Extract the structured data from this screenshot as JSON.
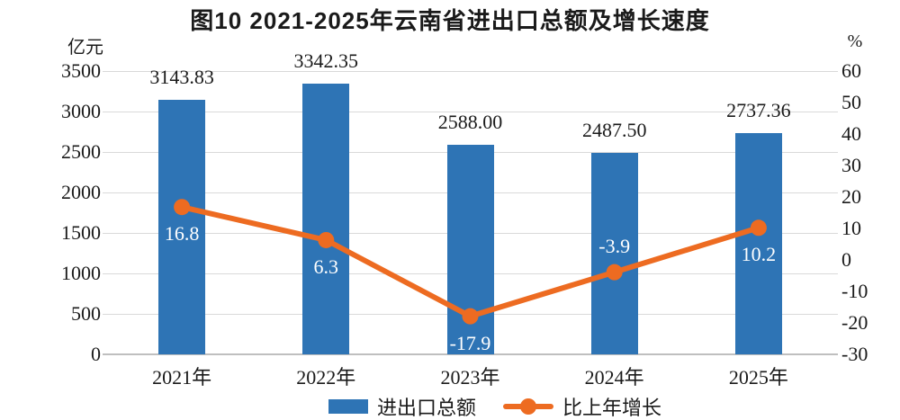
{
  "chart_data": {
    "type": "bar+line",
    "title": "图10  2021-2025年云南省进出口总额及增长速度",
    "left_axis": {
      "unit": "亿元",
      "min": 0,
      "max": 3500,
      "ticks": [
        3500,
        3000,
        2500,
        2000,
        1500,
        1000,
        500,
        0
      ]
    },
    "right_axis": {
      "unit": "%",
      "min": -30,
      "max": 60,
      "ticks": [
        60,
        50,
        40,
        30,
        20,
        10,
        0,
        -10,
        -20,
        -30
      ]
    },
    "categories": [
      "2021年",
      "2022年",
      "2023年",
      "2024年",
      "2025年"
    ],
    "series": [
      {
        "name": "进出口总额",
        "type": "bar",
        "color": "#2E74B5",
        "values": [
          3143.83,
          3342.35,
          2588.0,
          2487.5,
          2737.36
        ],
        "labels": [
          "3143.83",
          "3342.35",
          "2588.00",
          "2487.50",
          "2737.36"
        ],
        "label_color": "#1a1a1a"
      },
      {
        "name": "比上年增长",
        "type": "line",
        "color": "#ED6B21",
        "values": [
          16.8,
          6.3,
          -17.9,
          -3.9,
          10.2
        ],
        "labels": [
          "16.8",
          "6.3",
          "-17.9",
          "-3.9",
          "10.2"
        ],
        "label_color": "#ffffff",
        "label_positions": [
          "below",
          "below",
          "below",
          "above",
          "below"
        ]
      }
    ],
    "legend": {
      "position": "bottom",
      "entries": [
        "进出口总额",
        "比上年增长"
      ]
    },
    "grid": true,
    "background": "#ffffff"
  }
}
